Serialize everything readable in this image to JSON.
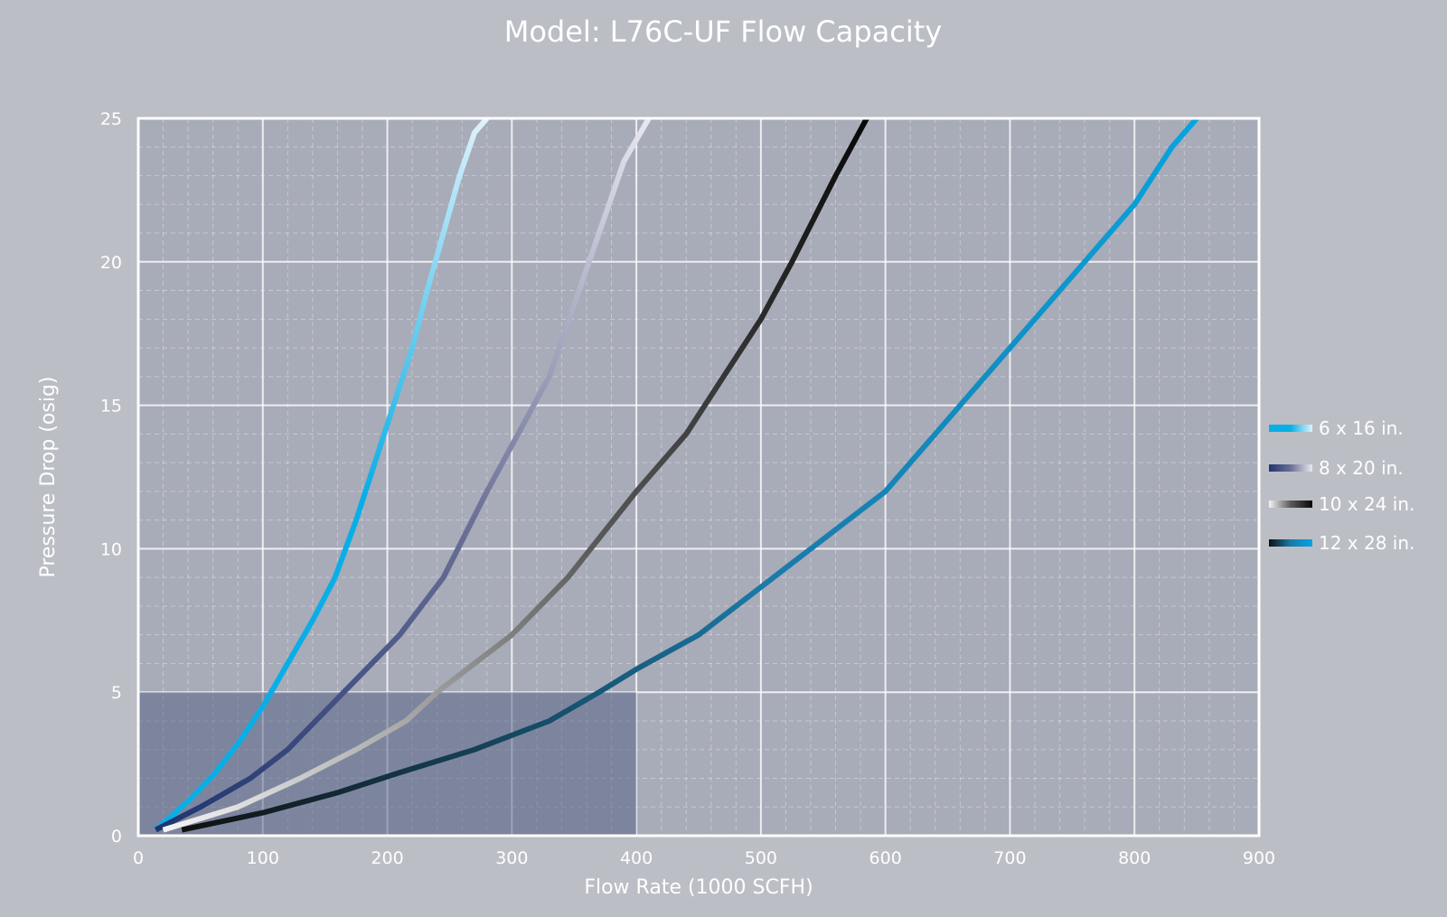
{
  "chart_data": {
    "type": "line",
    "title": "Model: L76C-UF Flow Capacity",
    "xlabel": "Flow Rate (1000 SCFH)",
    "ylabel": "Pressure Drop (osig)",
    "xlim": [
      0,
      900
    ],
    "ylim": [
      0,
      25
    ],
    "x_ticks": [
      "0",
      "100",
      "200",
      "300",
      "400",
      "500",
      "600",
      "700",
      "800",
      "900"
    ],
    "y_ticks": [
      "0",
      "5",
      "10",
      "15",
      "20",
      "25"
    ],
    "grid": true,
    "legend_position": "right",
    "highlight_region": {
      "x": [
        0,
        400
      ],
      "y": [
        0,
        5
      ]
    },
    "series": [
      {
        "name": "6 x 16 in.",
        "gradient": [
          "#0aaee6",
          "#0aaee6",
          "#dff3fb"
        ],
        "x": [
          14,
          40,
          60,
          80,
          100,
          120,
          140,
          158,
          175,
          190,
          205,
          220,
          232,
          245,
          258,
          270,
          280
        ],
        "y": [
          0.2,
          1.2,
          2.1,
          3.2,
          4.5,
          6,
          7.5,
          9,
          11,
          13,
          15,
          17,
          19,
          21,
          23,
          24.5,
          25
        ]
      },
      {
        "name": "8 x 20 in.",
        "gradient": [
          "#1f3470",
          "#6a7096",
          "#e8e8f0"
        ],
        "x": [
          14,
          50,
          90,
          120,
          165,
          210,
          245,
          280,
          305,
          330,
          350,
          370,
          390,
          410
        ],
        "y": [
          0.2,
          1,
          2,
          3,
          5,
          7,
          9,
          12,
          14,
          16,
          18.5,
          21,
          23.5,
          25
        ]
      },
      {
        "name": "10 x 24 in.",
        "gradient": [
          "#f4f4f4",
          "#5a5a5a",
          "#080808"
        ],
        "x": [
          20,
          80,
          130,
          175,
          215,
          240,
          270,
          300,
          345,
          400,
          440,
          470,
          500,
          525,
          560,
          585
        ],
        "y": [
          0.2,
          1,
          2,
          3,
          4,
          5,
          6,
          7,
          9,
          12,
          14,
          16,
          18,
          20,
          23,
          25
        ]
      },
      {
        "name": "12 x 28 in.",
        "gradient": [
          "#101010",
          "#1a7aa8",
          "#07a4e0"
        ],
        "x": [
          35,
          100,
          160,
          210,
          270,
          330,
          370,
          400,
          450,
          510,
          600,
          680,
          760,
          800,
          830,
          850
        ],
        "y": [
          0.2,
          0.8,
          1.5,
          2.2,
          3,
          4,
          5,
          5.8,
          7,
          9,
          12,
          16,
          20,
          22,
          24,
          25
        ]
      }
    ]
  }
}
